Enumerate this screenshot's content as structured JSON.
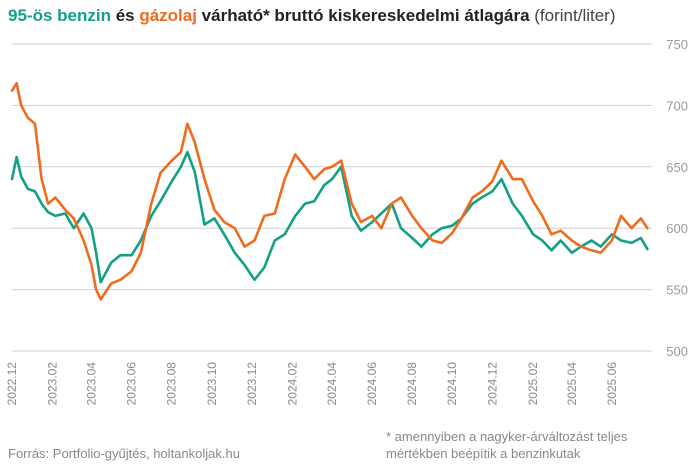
{
  "title": {
    "benzin": "95-ös benzin",
    "and": " és ",
    "gazolaj": "gázolaj",
    "rest": " várható* bruttó kiskereskedelmi átlagára",
    "unit": " (forint/liter)"
  },
  "footer": {
    "source": "Forrás: Portfolio-gyűjtés, holtankoljak.hu",
    "note": "* amennyiben a nagyker-árváltozást teljes mértékben beépítik a benzinkutak"
  },
  "colors": {
    "benzin": "#14a086",
    "gazolaj": "#ef6c1e",
    "grid": "#cfcfcf",
    "text": "#333333"
  },
  "chart_data": {
    "type": "line",
    "title": "95-ös benzin és gázolaj várható* bruttó kiskereskedelmi átlagára (forint/liter)",
    "xlabel": "",
    "ylabel": "",
    "ylim": [
      500,
      750
    ],
    "xlim": [
      "2022-12",
      "2025-08"
    ],
    "y_ticks": [
      "500",
      "550",
      "600",
      "650",
      "700",
      "750"
    ],
    "x_ticks": [
      "2022.12",
      "2023.02",
      "2023.04",
      "2023.06",
      "2023.08",
      "2023.10",
      "2023.12",
      "2024.02",
      "2024.04",
      "2024.06",
      "2024.08",
      "2024.10",
      "2024.12",
      "2025.02",
      "2025.04",
      "2025.06"
    ],
    "y_axis_side": "right",
    "grid": "horizontal",
    "legend": "in title",
    "series": [
      {
        "name": "95-ös benzin",
        "x": [
          "2022-12-01",
          "2022-12-08",
          "2022-12-15",
          "2022-12-25",
          "2023-01-05",
          "2023-01-15",
          "2023-01-25",
          "2023-02-05",
          "2023-02-20",
          "2023-03-05",
          "2023-03-20",
          "2023-04-01",
          "2023-04-08",
          "2023-04-15",
          "2023-05-01",
          "2023-05-15",
          "2023-06-01",
          "2023-06-15",
          "2023-07-01",
          "2023-07-15",
          "2023-08-01",
          "2023-08-15",
          "2023-08-25",
          "2023-09-05",
          "2023-09-20",
          "2023-10-05",
          "2023-10-20",
          "2023-11-05",
          "2023-11-20",
          "2023-12-05",
          "2023-12-20",
          "2024-01-05",
          "2024-01-20",
          "2024-02-05",
          "2024-02-20",
          "2024-03-05",
          "2024-03-20",
          "2024-04-01",
          "2024-04-15",
          "2024-05-01",
          "2024-05-15",
          "2024-06-01",
          "2024-06-15",
          "2024-07-01",
          "2024-07-15",
          "2024-08-01",
          "2024-08-15",
          "2024-09-01",
          "2024-09-15",
          "2024-10-01",
          "2024-10-15",
          "2024-11-01",
          "2024-11-15",
          "2024-12-01",
          "2024-12-15",
          "2025-01-01",
          "2025-01-15",
          "2025-02-01",
          "2025-02-15",
          "2025-03-01",
          "2025-03-15",
          "2025-04-01",
          "2025-04-15",
          "2025-05-01",
          "2025-05-15",
          "2025-06-01",
          "2025-06-15",
          "2025-07-01",
          "2025-07-15",
          "2025-07-25"
        ],
        "values": [
          640,
          658,
          642,
          632,
          630,
          620,
          613,
          610,
          612,
          600,
          612,
          600,
          580,
          556,
          572,
          578,
          578,
          590,
          610,
          622,
          638,
          650,
          662,
          646,
          603,
          608,
          595,
          580,
          570,
          558,
          568,
          590,
          595,
          610,
          620,
          622,
          635,
          640,
          650,
          610,
          598,
          605,
          612,
          620,
          600,
          592,
          585,
          595,
          600,
          602,
          608,
          620,
          625,
          630,
          640,
          620,
          610,
          595,
          590,
          582,
          590,
          580,
          585,
          590,
          585,
          595,
          590,
          588,
          592,
          583
        ]
      },
      {
        "name": "gázolaj",
        "x": [
          "2022-12-01",
          "2022-12-08",
          "2022-12-15",
          "2022-12-25",
          "2023-01-05",
          "2023-01-15",
          "2023-01-25",
          "2023-02-05",
          "2023-02-20",
          "2023-03-05",
          "2023-03-20",
          "2023-04-01",
          "2023-04-08",
          "2023-04-15",
          "2023-05-01",
          "2023-05-15",
          "2023-06-01",
          "2023-06-15",
          "2023-07-01",
          "2023-07-15",
          "2023-08-01",
          "2023-08-15",
          "2023-08-25",
          "2023-09-05",
          "2023-09-20",
          "2023-10-05",
          "2023-10-20",
          "2023-11-05",
          "2023-11-20",
          "2023-12-05",
          "2023-12-20",
          "2024-01-05",
          "2024-01-20",
          "2024-02-05",
          "2024-02-20",
          "2024-03-05",
          "2024-03-20",
          "2024-04-01",
          "2024-04-15",
          "2024-05-01",
          "2024-05-15",
          "2024-06-01",
          "2024-06-15",
          "2024-07-01",
          "2024-07-15",
          "2024-08-01",
          "2024-08-15",
          "2024-09-01",
          "2024-09-15",
          "2024-10-01",
          "2024-10-15",
          "2024-11-01",
          "2024-11-15",
          "2024-12-01",
          "2024-12-15",
          "2025-01-01",
          "2025-01-15",
          "2025-02-01",
          "2025-02-15",
          "2025-03-01",
          "2025-03-15",
          "2025-04-01",
          "2025-04-15",
          "2025-05-01",
          "2025-05-15",
          "2025-06-01",
          "2025-06-15",
          "2025-07-01",
          "2025-07-15",
          "2025-07-25"
        ],
        "values": [
          712,
          718,
          700,
          690,
          685,
          640,
          620,
          625,
          615,
          608,
          590,
          570,
          550,
          542,
          555,
          558,
          565,
          580,
          620,
          645,
          655,
          662,
          685,
          670,
          640,
          615,
          605,
          600,
          585,
          590,
          610,
          612,
          640,
          660,
          650,
          640,
          648,
          650,
          655,
          620,
          605,
          610,
          600,
          620,
          625,
          610,
          600,
          590,
          588,
          596,
          608,
          625,
          630,
          638,
          655,
          640,
          640,
          622,
          610,
          595,
          598,
          590,
          585,
          582,
          580,
          590,
          610,
          600,
          608,
          600
        ]
      }
    ]
  }
}
